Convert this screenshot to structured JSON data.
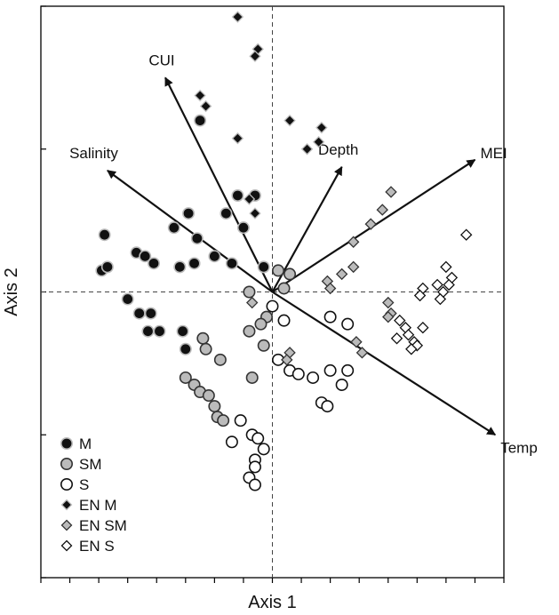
{
  "chart_data": {
    "type": "scatter",
    "title": "",
    "xlabel": "Axis 1",
    "ylabel": "Axis 2",
    "xlim": [
      -4,
      4
    ],
    "ylim": [
      -4,
      4
    ],
    "xticks": [
      -4,
      -3.5,
      -3,
      -2.5,
      -2,
      -1.5,
      -1,
      -0.5,
      0,
      0.5,
      1,
      1.5,
      2,
      2.5,
      3,
      3.5,
      4
    ],
    "yticks": [
      -4,
      -2,
      0,
      2,
      4
    ],
    "show_tick_labels": false,
    "reference_lines": {
      "x": 0,
      "y": 0,
      "style": "dashed"
    },
    "grid": false,
    "legend_position": "bottom-left",
    "series": [
      {
        "name": "M",
        "marker": "circle",
        "fill": "#111111",
        "stroke": "#bbbbbb",
        "points": [
          [
            -2.9,
            0.8
          ],
          [
            -2.95,
            0.3
          ],
          [
            -2.85,
            0.35
          ],
          [
            -2.35,
            0.55
          ],
          [
            -2.2,
            0.5
          ],
          [
            -2.05,
            0.4
          ],
          [
            -1.7,
            0.9
          ],
          [
            -1.45,
            1.1
          ],
          [
            -1.3,
            0.75
          ],
          [
            -1.6,
            0.35
          ],
          [
            -1.35,
            0.4
          ],
          [
            -1.0,
            0.5
          ],
          [
            -0.7,
            0.4
          ],
          [
            -0.6,
            1.35
          ],
          [
            -0.8,
            1.1
          ],
          [
            -0.5,
            0.9
          ],
          [
            -0.3,
            1.35
          ],
          [
            -0.15,
            0.35
          ],
          [
            -1.25,
            2.4
          ],
          [
            -2.5,
            -0.1
          ],
          [
            -2.3,
            -0.3
          ],
          [
            -2.1,
            -0.3
          ],
          [
            -2.15,
            -0.55
          ],
          [
            -1.95,
            -0.55
          ],
          [
            -1.55,
            -0.55
          ],
          [
            -1.5,
            -0.8
          ]
        ]
      },
      {
        "name": "SM",
        "marker": "circle",
        "fill": "#bbbbbb",
        "stroke": "#333333",
        "points": [
          [
            0.1,
            0.3
          ],
          [
            0.3,
            0.25
          ],
          [
            0.2,
            0.05
          ],
          [
            -0.4,
            0.0
          ],
          [
            -0.1,
            -0.35
          ],
          [
            -0.2,
            -0.45
          ],
          [
            -0.4,
            -0.55
          ],
          [
            -0.15,
            -0.75
          ],
          [
            -1.2,
            -0.65
          ],
          [
            -1.15,
            -0.8
          ],
          [
            -0.9,
            -0.95
          ],
          [
            -1.5,
            -1.2
          ],
          [
            -1.35,
            -1.3
          ],
          [
            -1.25,
            -1.4
          ],
          [
            -1.1,
            -1.45
          ],
          [
            -1.0,
            -1.6
          ],
          [
            -0.95,
            -1.75
          ],
          [
            -0.85,
            -1.8
          ],
          [
            -0.35,
            -1.2
          ]
        ]
      },
      {
        "name": "S",
        "marker": "circle",
        "fill": "#ffffff",
        "stroke": "#111111",
        "points": [
          [
            0.0,
            -0.2
          ],
          [
            0.2,
            -0.4
          ],
          [
            0.1,
            -0.95
          ],
          [
            0.3,
            -1.1
          ],
          [
            0.7,
            -1.2
          ],
          [
            0.85,
            -1.55
          ],
          [
            1.0,
            -1.1
          ],
          [
            1.3,
            -1.1
          ],
          [
            1.2,
            -1.3
          ],
          [
            0.45,
            -1.15
          ],
          [
            1.0,
            -0.35
          ],
          [
            1.3,
            -0.45
          ],
          [
            0.95,
            -1.6
          ],
          [
            -0.55,
            -1.8
          ],
          [
            -0.35,
            -2.0
          ],
          [
            -0.25,
            -2.05
          ],
          [
            -0.15,
            -2.2
          ],
          [
            -0.3,
            -2.35
          ],
          [
            -0.3,
            -2.45
          ],
          [
            -0.7,
            -2.1
          ],
          [
            -0.4,
            -2.6
          ],
          [
            -0.3,
            -2.7
          ]
        ]
      },
      {
        "name": "EN M",
        "marker": "diamond",
        "fill": "#111111",
        "stroke": "#bbbbbb",
        "points": [
          [
            -0.6,
            3.85
          ],
          [
            -0.25,
            3.4
          ],
          [
            -0.3,
            3.3
          ],
          [
            -1.25,
            2.75
          ],
          [
            -1.15,
            2.6
          ],
          [
            -0.6,
            2.15
          ],
          [
            0.3,
            2.4
          ],
          [
            0.85,
            2.3
          ],
          [
            0.8,
            2.1
          ],
          [
            0.6,
            2.0
          ],
          [
            -0.4,
            1.3
          ],
          [
            -0.3,
            1.1
          ]
        ]
      },
      {
        "name": "EN SM",
        "marker": "diamond",
        "fill": "#bbbbbb",
        "stroke": "#333333",
        "points": [
          [
            2.05,
            1.4
          ],
          [
            1.9,
            1.15
          ],
          [
            1.7,
            0.95
          ],
          [
            1.4,
            0.7
          ],
          [
            1.4,
            0.35
          ],
          [
            1.2,
            0.25
          ],
          [
            0.95,
            0.15
          ],
          [
            1.0,
            0.05
          ],
          [
            -0.35,
            -0.15
          ],
          [
            2.0,
            -0.15
          ],
          [
            2.05,
            -0.3
          ],
          [
            2.0,
            -0.35
          ],
          [
            1.45,
            -0.7
          ],
          [
            1.55,
            -0.85
          ],
          [
            0.3,
            -0.85
          ],
          [
            0.25,
            -0.95
          ]
        ]
      },
      {
        "name": "EN S",
        "marker": "diamond",
        "fill": "#ffffff",
        "stroke": "#111111",
        "points": [
          [
            3.35,
            0.8
          ],
          [
            3.0,
            0.35
          ],
          [
            3.1,
            0.2
          ],
          [
            3.05,
            0.1
          ],
          [
            2.85,
            0.1
          ],
          [
            2.95,
            0.0
          ],
          [
            2.6,
            0.05
          ],
          [
            2.55,
            -0.05
          ],
          [
            2.9,
            -0.1
          ],
          [
            2.6,
            -0.5
          ],
          [
            2.2,
            -0.4
          ],
          [
            2.3,
            -0.5
          ],
          [
            2.15,
            -0.65
          ],
          [
            2.35,
            -0.6
          ],
          [
            2.45,
            -0.7
          ],
          [
            2.5,
            -0.75
          ],
          [
            2.4,
            -0.8
          ]
        ]
      }
    ],
    "vectors": [
      {
        "label": "CUI",
        "x": -1.85,
        "y": 3.0
      },
      {
        "label": "Salinity",
        "x": -2.85,
        "y": 1.7
      },
      {
        "label": "Depth",
        "x": 1.2,
        "y": 1.75
      },
      {
        "label": "MEI",
        "x": 3.5,
        "y": 1.85
      },
      {
        "label": "Temp",
        "x": 3.85,
        "y": -2.0
      }
    ]
  }
}
